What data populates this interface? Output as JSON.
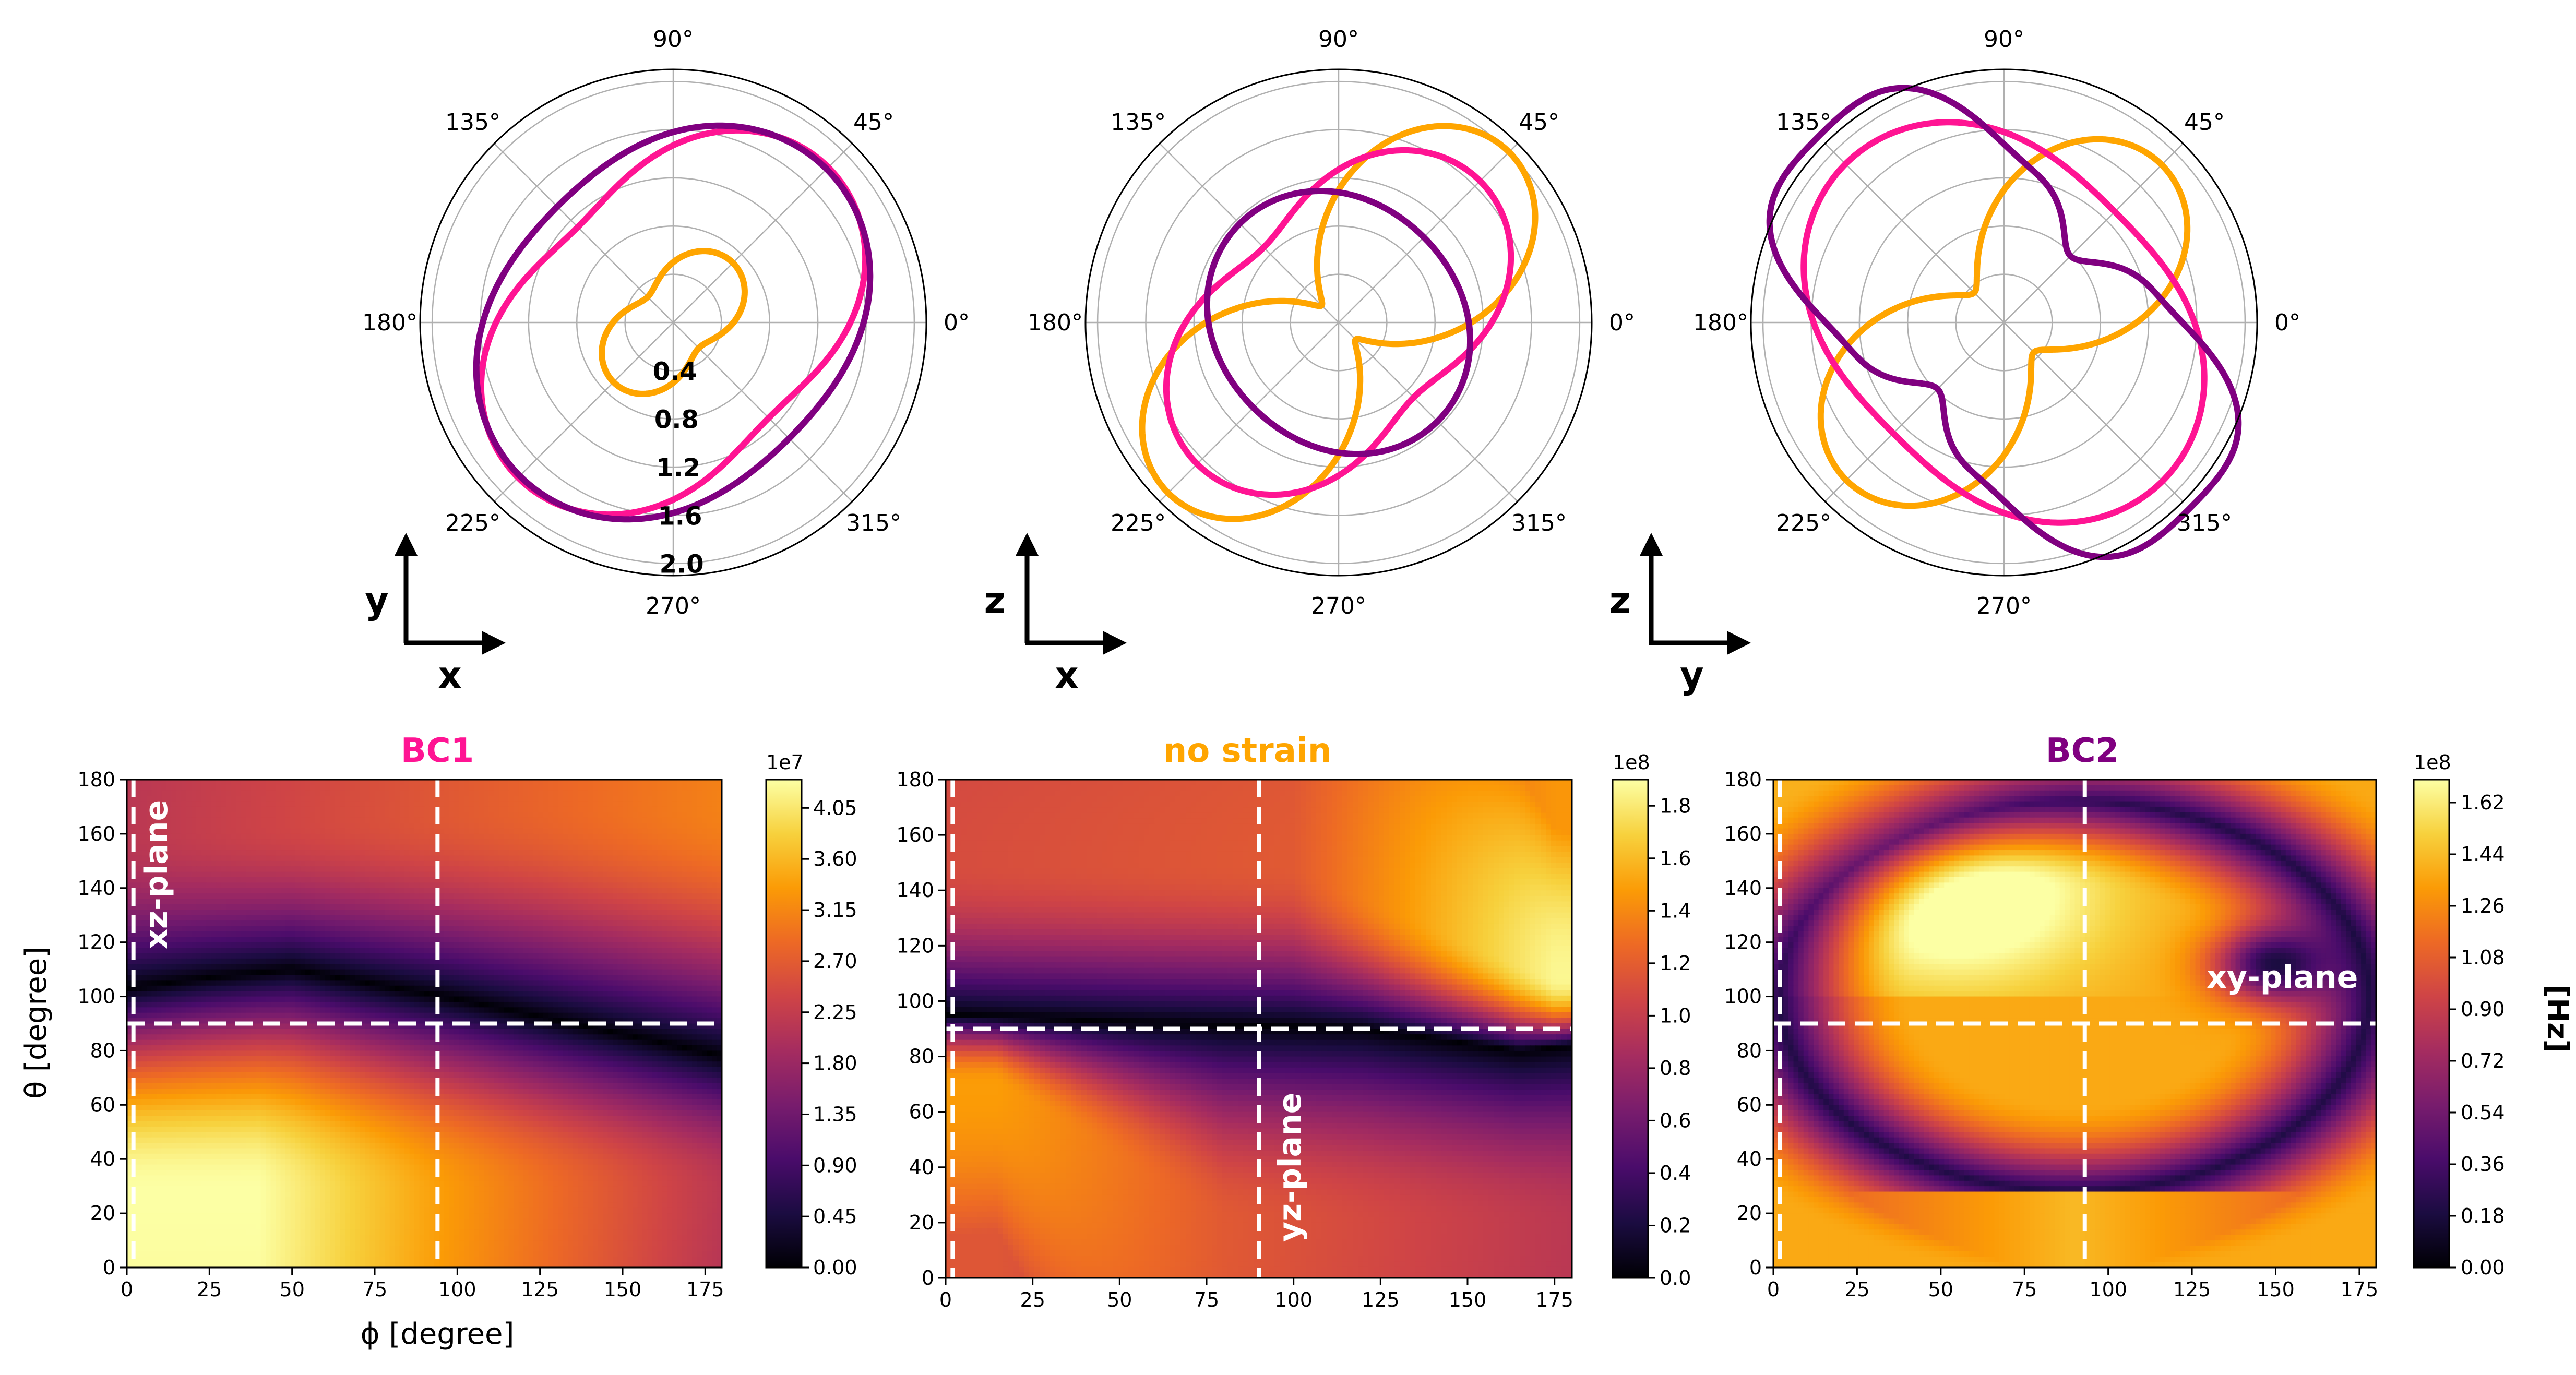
{
  "colors": {
    "bc1": "#ff1493",
    "no_strain": "#ffa500",
    "bc2": "#800080",
    "colormap": [
      "#000004",
      "#1b0c41",
      "#4a0c6b",
      "#781c6d",
      "#a52c60",
      "#cf4446",
      "#ed6925",
      "#fb9b06",
      "#f7d13d",
      "#fcffa4"
    ]
  },
  "polar": {
    "angle_labels": [
      "0°",
      "45°",
      "90°",
      "135°",
      "180°",
      "225°",
      "270°",
      "315°"
    ],
    "angle_values": [
      0,
      45,
      90,
      135,
      180,
      225,
      270,
      315
    ],
    "radial_labels": [
      "0.4",
      "0.8",
      "1.2",
      "1.6",
      "2.0"
    ],
    "radial_values": [
      0.4,
      0.8,
      1.2,
      1.6,
      2.0
    ],
    "rmax": 2.1
  },
  "units": {
    "cbar": "[Hz]"
  },
  "chart_data": [
    {
      "type": "polar",
      "axes": {
        "vertical": "y",
        "horizontal": "x"
      },
      "series": [
        {
          "name": "BC1",
          "color": "#ff1493",
          "a": 1.47,
          "b": 0.35,
          "n": 2
        },
        {
          "name": "BC2",
          "color": "#800080",
          "a": 1.58,
          "b": 0.22,
          "n": 2
        },
        {
          "name": "no strain",
          "color": "#ffa500",
          "a": 0.5,
          "b": 0.2,
          "n": 2
        }
      ]
    },
    {
      "type": "polar",
      "axes": {
        "vertical": "z",
        "horizontal": "x"
      },
      "series": [
        {
          "name": "no strain",
          "color": "#ffa500",
          "a": 1.1,
          "b": 0.9,
          "n": 2
        },
        {
          "name": "BC1",
          "color": "#ff1493",
          "a": 1.27,
          "b": 0.39,
          "n": 2
        },
        {
          "name": "BC2",
          "color": "#800080",
          "a": 1.08,
          "b": -0.08,
          "n": 2
        }
      ]
    },
    {
      "type": "polar",
      "axes": {
        "vertical": "z",
        "horizontal": "y"
      },
      "series": [
        {
          "name": "no strain",
          "color": "#ffa500",
          "a": 1.1,
          "b": 0.75,
          "n": 2
        },
        {
          "name": "BC1",
          "color": "#ff1493",
          "a": 1.58,
          "b": -0.28,
          "n": 2
        },
        {
          "name": "BC2",
          "color": "#800080",
          "a": 1.48,
          "b": -0.7,
          "n": 2,
          "c": 0.13,
          "m": 4
        }
      ]
    },
    {
      "type": "heatmap",
      "title": "BC1",
      "title_color": "#ff1493",
      "xlabel": "ϕ [degree]",
      "ylabel": "θ [degree]",
      "xlim": [
        0,
        180
      ],
      "ylim": [
        0,
        180
      ],
      "xticks": [
        "0",
        "25",
        "50",
        "75",
        "100",
        "125",
        "150",
        "175"
      ],
      "yticks": [
        "0",
        "20",
        "40",
        "60",
        "80",
        "100",
        "120",
        "140",
        "160",
        "180"
      ],
      "colorbar": {
        "exponent": "1e7",
        "ticks": [
          "0.00",
          "0.45",
          "0.90",
          "1.35",
          "1.80",
          "2.25",
          "2.70",
          "3.15",
          "3.60",
          "4.05"
        ],
        "tick_values": [
          0,
          0.45,
          0.9,
          1.35,
          1.8,
          2.25,
          2.7,
          3.15,
          3.6,
          4.05
        ],
        "max": 4.3
      },
      "field": {
        "kind": "node_curve",
        "amplitude": 4.3,
        "node_points": [
          [
            0,
            103
          ],
          [
            25,
            107
          ],
          [
            50,
            110
          ],
          [
            100,
            99
          ],
          [
            150,
            86
          ],
          [
            180,
            78
          ]
        ],
        "upper": [
          [
            0,
            160,
            0.5
          ],
          [
            125,
            170,
            0.65
          ],
          [
            180,
            170,
            0.72
          ]
        ],
        "lower": [
          [
            40,
            28,
            1.0
          ],
          [
            90,
            28,
            0.8
          ],
          [
            180,
            30,
            0.5
          ]
        ]
      },
      "guides": {
        "vertical": [
          2,
          94
        ],
        "horizontal": [
          90
        ]
      },
      "plane_label": {
        "text": "xz-plane",
        "phi": 9,
        "theta": 145,
        "rotate": -90
      }
    },
    {
      "type": "heatmap",
      "title": "no strain",
      "title_color": "#ffa500",
      "xlabel": "",
      "ylabel": "",
      "xlim": [
        0,
        180
      ],
      "ylim": [
        0,
        180
      ],
      "xticks": [
        "0",
        "25",
        "50",
        "75",
        "100",
        "125",
        "150",
        "175"
      ],
      "yticks": [
        "0",
        "20",
        "40",
        "60",
        "80",
        "100",
        "120",
        "140",
        "160",
        "180"
      ],
      "colorbar": {
        "exponent": "1e8",
        "ticks": [
          "0.0",
          "0.2",
          "0.4",
          "0.6",
          "0.8",
          "1.0",
          "1.2",
          "1.4",
          "1.6",
          "1.8"
        ],
        "tick_values": [
          0,
          0.2,
          0.4,
          0.6,
          0.8,
          1.0,
          1.2,
          1.4,
          1.6,
          1.8
        ],
        "max": 1.9
      },
      "field": {
        "kind": "node_curve",
        "amplitude": 1.9,
        "node_points": [
          [
            0,
            95
          ],
          [
            60,
            92
          ],
          [
            120,
            90
          ],
          [
            165,
            82
          ],
          [
            180,
            84
          ]
        ],
        "upper": [
          [
            0,
            150,
            0.58
          ],
          [
            100,
            150,
            0.62
          ],
          [
            175,
            108,
            0.98
          ]
        ],
        "lower": [
          [
            15,
            70,
            0.78
          ],
          [
            80,
            20,
            0.62
          ],
          [
            180,
            20,
            0.5
          ]
        ]
      },
      "guides": {
        "vertical": [
          2,
          90
        ],
        "horizontal": [
          90
        ]
      },
      "plane_label": {
        "text": "yz-plane",
        "phi": 99,
        "theta": 40,
        "rotate": -90
      }
    },
    {
      "type": "heatmap",
      "title": "BC2",
      "title_color": "#800080",
      "xlabel": "",
      "ylabel": "",
      "xlim": [
        0,
        180
      ],
      "ylim": [
        0,
        180
      ],
      "xticks": [
        "0",
        "25",
        "50",
        "75",
        "100",
        "125",
        "150",
        "175"
      ],
      "yticks": [
        "0",
        "20",
        "40",
        "60",
        "80",
        "100",
        "120",
        "140",
        "160",
        "180"
      ],
      "colorbar": {
        "exponent": "1e8",
        "ticks": [
          "0.00",
          "0.18",
          "0.36",
          "0.54",
          "0.72",
          "0.90",
          "1.08",
          "1.26",
          "1.44",
          "1.62"
        ],
        "tick_values": [
          0,
          0.18,
          0.36,
          0.54,
          0.72,
          0.9,
          1.08,
          1.26,
          1.44,
          1.62
        ],
        "max": 1.7
      },
      "field": {
        "kind": "node_ring",
        "amplitude": 1.7,
        "center": [
          90,
          100
        ],
        "radius": [
          88,
          72
        ],
        "dark_spot": [
          150,
          112
        ],
        "bright_spot": [
          55,
          137
        ]
      },
      "guides": {
        "vertical": [
          2,
          93
        ],
        "horizontal": [
          90
        ]
      },
      "plane_label": {
        "text": "xy-plane",
        "phi": 152,
        "theta": 99,
        "rotate": 0
      }
    }
  ]
}
